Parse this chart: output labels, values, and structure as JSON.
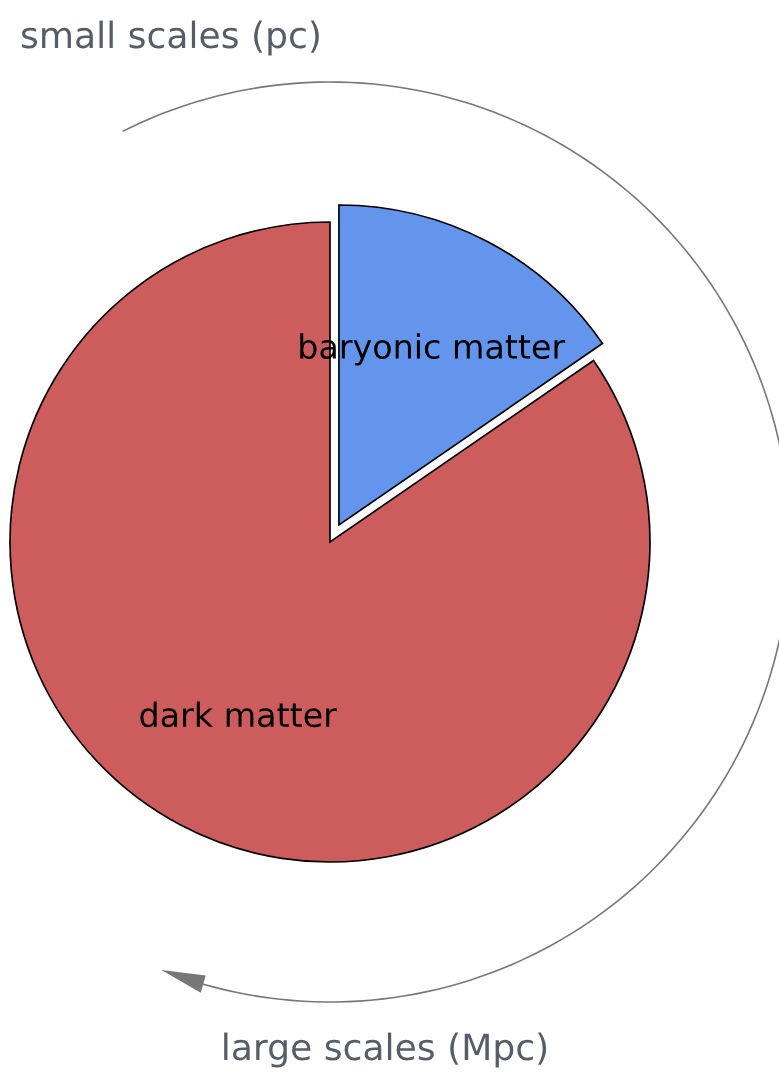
{
  "chart_data": {
    "type": "pie",
    "categories": [
      "baryonic matter",
      "dark matter"
    ],
    "values": [
      15.4,
      84.6
    ],
    "colors": [
      "#6495ed",
      "#cd5c5c"
    ],
    "annotations": [
      "small scales (pc)",
      "large scales (Mpc)"
    ]
  }
}
